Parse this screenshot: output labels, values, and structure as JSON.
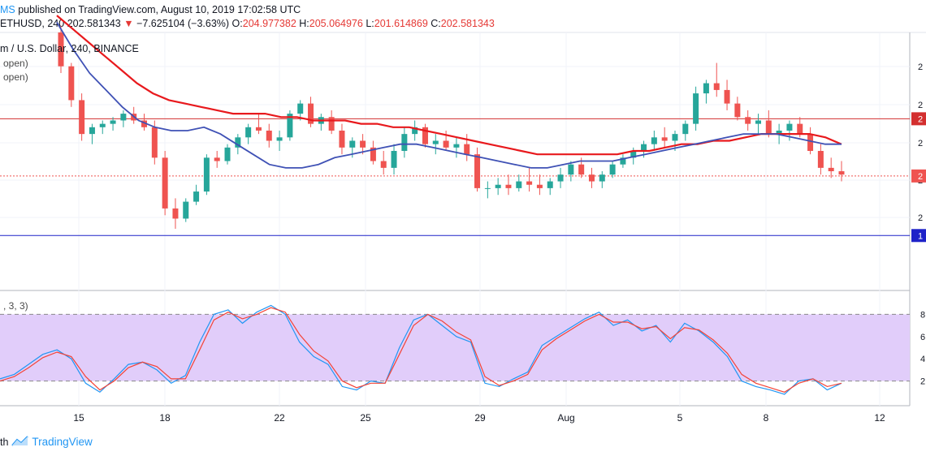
{
  "header": {
    "brand_fragment": "MS",
    "published": "published on TradingView.com, August 10, 2019 17:02:58 UTC",
    "symbol": "ETHUSD, 240",
    "last_price": "202.581343",
    "change": "−7.625104 (−3.63%)",
    "ohlc": [
      {
        "label": "O:",
        "value": "204.977382"
      },
      {
        "label": "H:",
        "value": "205.064976"
      },
      {
        "label": "L:",
        "value": "201.614869"
      },
      {
        "label": "C:",
        "value": "202.581343"
      }
    ]
  },
  "legend": {
    "title": "m / U.S. Dollar, 240, BINANCE",
    "line1": "open)",
    "line2": "open)",
    "osc": ", 3, 3)"
  },
  "footer": {
    "prefix": "th",
    "brand": "TradingView"
  },
  "colors": {
    "up": "#26a69a",
    "down": "#ef5350",
    "ma_fast": "#3f51b5",
    "ma_slow": "#e8191d",
    "resistance": "#d32f2f",
    "support": "#1e22c8",
    "osc_band": "#e1cdfa",
    "stoch_k": "#2196f3",
    "stoch_d": "#f44336"
  },
  "chart_data": [
    {
      "type": "candlestick",
      "title": "m / U.S. Dollar, 240, BINANCE",
      "x_ticks": [
        "15",
        "18",
        "22",
        "25",
        "29",
        "Aug",
        "5",
        "8",
        "12"
      ],
      "right_axis_ticks": [
        "2",
        "2",
        "2",
        "2",
        "2"
      ],
      "price_tags": [
        {
          "label": "2",
          "kind": "resistance"
        },
        {
          "label": "2",
          "kind": "last"
        },
        {
          "label": "1",
          "kind": "support"
        }
      ],
      "horizontal_levels": {
        "resistance": 219.5,
        "support": 185.0,
        "last": 202.6
      },
      "ylim": [
        175,
        245
      ],
      "candles_note": "OHLC estimated; scale approximate",
      "candles": [
        [
          245,
          247,
          233,
          235
        ],
        [
          235,
          236,
          223,
          225
        ],
        [
          225,
          227,
          213,
          215
        ],
        [
          215,
          218,
          212,
          217
        ],
        [
          217,
          219,
          215,
          218
        ],
        [
          218,
          220,
          216,
          219
        ],
        [
          219,
          222,
          217,
          221
        ],
        [
          221,
          223,
          218,
          219
        ],
        [
          219,
          221,
          216,
          217
        ],
        [
          217,
          219,
          206,
          208
        ],
        [
          208,
          210,
          191,
          193
        ],
        [
          193,
          196,
          187,
          190
        ],
        [
          190,
          196,
          189,
          195
        ],
        [
          195,
          200,
          194,
          198
        ],
        [
          198,
          209,
          197,
          208
        ],
        [
          208,
          210,
          205,
          207
        ],
        [
          207,
          212,
          206,
          211
        ],
        [
          211,
          215,
          209,
          214
        ],
        [
          214,
          218,
          212,
          217
        ],
        [
          217,
          221,
          215,
          216
        ],
        [
          216,
          218,
          211,
          213
        ],
        [
          213,
          216,
          210,
          214
        ],
        [
          214,
          222,
          213,
          221
        ],
        [
          221,
          225,
          219,
          224
        ],
        [
          224,
          226,
          217,
          218
        ],
        [
          218,
          221,
          216,
          220
        ],
        [
          220,
          222,
          215,
          216
        ],
        [
          216,
          218,
          209,
          211
        ],
        [
          211,
          214,
          208,
          213
        ],
        [
          213,
          215,
          209,
          211
        ],
        [
          211,
          213,
          206,
          207
        ],
        [
          207,
          210,
          203,
          205
        ],
        [
          205,
          212,
          203,
          210
        ],
        [
          210,
          217,
          208,
          215
        ],
        [
          215,
          219,
          213,
          217
        ],
        [
          217,
          218,
          211,
          212
        ],
        [
          212,
          215,
          209,
          213
        ],
        [
          213,
          216,
          210,
          211
        ],
        [
          211,
          214,
          208,
          212
        ],
        [
          212,
          215,
          207,
          209
        ],
        [
          209,
          211,
          198,
          199
        ],
        [
          199,
          201,
          196,
          199
        ],
        [
          199,
          202,
          197,
          200
        ],
        [
          200,
          203,
          197,
          199
        ],
        [
          199,
          203,
          198,
          201
        ],
        [
          201,
          205,
          198,
          200
        ],
        [
          200,
          203,
          197,
          199
        ],
        [
          199,
          202,
          197,
          201
        ],
        [
          201,
          205,
          199,
          203
        ],
        [
          203,
          207,
          201,
          206
        ],
        [
          206,
          208,
          202,
          203
        ],
        [
          203,
          205,
          199,
          201
        ],
        [
          201,
          204,
          199,
          203
        ],
        [
          203,
          207,
          202,
          206
        ],
        [
          206,
          209,
          205,
          208
        ],
        [
          208,
          211,
          206,
          210
        ],
        [
          210,
          213,
          208,
          212
        ],
        [
          212,
          216,
          210,
          214
        ],
        [
          214,
          217,
          211,
          213
        ],
        [
          213,
          216,
          210,
          215
        ],
        [
          215,
          219,
          213,
          218
        ],
        [
          218,
          229,
          216,
          227
        ],
        [
          227,
          231,
          224,
          230
        ],
        [
          230,
          236,
          226,
          228
        ],
        [
          228,
          231,
          222,
          224
        ],
        [
          224,
          226,
          219,
          220
        ],
        [
          220,
          222,
          216,
          218
        ],
        [
          218,
          221,
          215,
          219
        ],
        [
          219,
          222,
          214,
          215
        ],
        [
          215,
          218,
          212,
          216
        ],
        [
          216,
          219,
          213,
          218
        ],
        [
          218,
          220,
          214,
          215
        ],
        [
          215,
          217,
          209,
          210
        ],
        [
          210,
          212,
          203,
          205
        ],
        [
          205,
          208,
          202,
          204
        ],
        [
          204,
          207,
          201,
          203
        ]
      ],
      "ma_fast": [
        248,
        240,
        233,
        228,
        223,
        219,
        217,
        216,
        216,
        217,
        215,
        212,
        209,
        206,
        205,
        205,
        206,
        208,
        209,
        210,
        211,
        212,
        212,
        211,
        210,
        209,
        208,
        207,
        206,
        205,
        205,
        206,
        207,
        207,
        207,
        208,
        209,
        210,
        211,
        212,
        213,
        214,
        215,
        215,
        215,
        214,
        213,
        212,
        212
      ],
      "ma_slow": [
        250,
        246,
        242,
        238,
        234,
        230,
        227,
        225,
        224,
        223,
        222,
        221,
        221,
        221,
        220,
        220,
        219,
        219,
        219,
        218,
        218,
        217,
        217,
        216,
        215,
        214,
        213,
        212,
        211,
        210,
        209,
        209,
        209,
        209,
        209,
        209,
        210,
        210,
        211,
        212,
        212,
        213,
        213,
        214,
        215,
        215,
        215,
        215,
        214,
        212
      ]
    },
    {
      "type": "line",
      "title": ", 3, 3)",
      "ylim": [
        0,
        100
      ],
      "y_ticks": [
        "8",
        "6",
        "4",
        "2"
      ],
      "band": [
        20,
        80
      ],
      "series": [
        {
          "name": "",
          "values": [
            22,
            26,
            35,
            44,
            48,
            40,
            18,
            10,
            22,
            35,
            37,
            30,
            18,
            25,
            55,
            80,
            84,
            72,
            82,
            88,
            80,
            55,
            42,
            35,
            15,
            12,
            20,
            18,
            50,
            75,
            80,
            70,
            60,
            55,
            18,
            15,
            22,
            28,
            52,
            60,
            68,
            76,
            82,
            70,
            75,
            65,
            70,
            55,
            72,
            65,
            55,
            42,
            20,
            15,
            12,
            8,
            20,
            22,
            12,
            18
          ]
        },
        {
          "name": "",
          "values": [
            20,
            24,
            32,
            41,
            46,
            42,
            24,
            12,
            20,
            32,
            37,
            33,
            22,
            22,
            48,
            75,
            82,
            76,
            80,
            86,
            82,
            62,
            47,
            38,
            20,
            14,
            18,
            18,
            44,
            70,
            80,
            74,
            64,
            57,
            24,
            16,
            20,
            26,
            48,
            58,
            66,
            74,
            80,
            73,
            73,
            67,
            69,
            58,
            68,
            66,
            57,
            45,
            26,
            18,
            14,
            10,
            18,
            22,
            15,
            18
          ]
        }
      ]
    }
  ]
}
